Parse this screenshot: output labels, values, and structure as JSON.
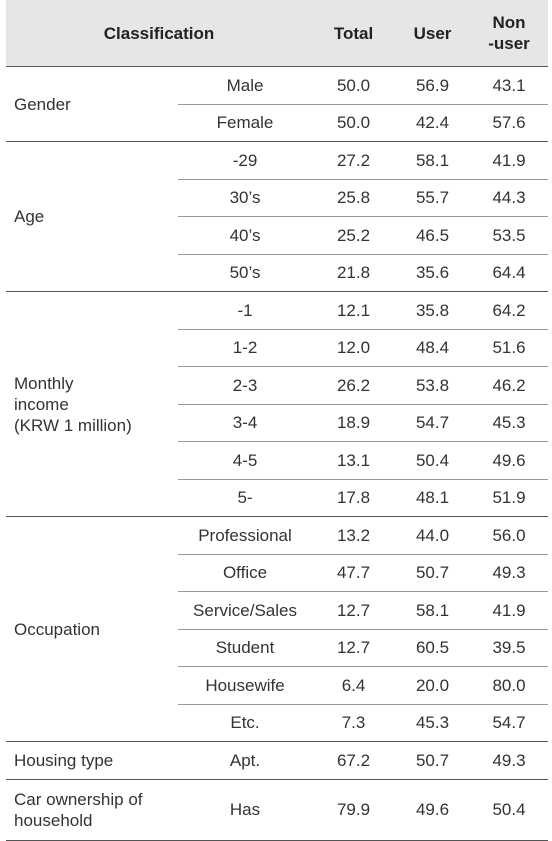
{
  "table": {
    "header": [
      "Classification",
      "Total",
      "User",
      "Non\n-user"
    ],
    "groups": [
      {
        "label": "Gender",
        "rows": [
          [
            "Male",
            "50.0",
            "56.9",
            "43.1"
          ],
          [
            "Female",
            "50.0",
            "42.4",
            "57.6"
          ]
        ]
      },
      {
        "label": "Age",
        "rows": [
          [
            "-29",
            "27.2",
            "58.1",
            "41.9"
          ],
          [
            "30’s",
            "25.8",
            "55.7",
            "44.3"
          ],
          [
            "40’s",
            "25.2",
            "46.5",
            "53.5"
          ],
          [
            "50’s",
            "21.8",
            "35.6",
            "64.4"
          ]
        ]
      },
      {
        "label": "Monthly\nincome\n(KRW 1 million)",
        "rows": [
          [
            "-1",
            "12.1",
            "35.8",
            "64.2"
          ],
          [
            "1-2",
            "12.0",
            "48.4",
            "51.6"
          ],
          [
            "2-3",
            "26.2",
            "53.8",
            "46.2"
          ],
          [
            "3-4",
            "18.9",
            "54.7",
            "45.3"
          ],
          [
            "4-5",
            "13.1",
            "50.4",
            "49.6"
          ],
          [
            "5-",
            "17.8",
            "48.1",
            "51.9"
          ]
        ]
      },
      {
        "label": "Occupation",
        "rows": [
          [
            "Professional",
            "13.2",
            "44.0",
            "56.0"
          ],
          [
            "Office",
            "47.7",
            "50.7",
            "49.3"
          ],
          [
            "Service/Sales",
            "12.7",
            "58.1",
            "41.9"
          ],
          [
            "Student",
            "12.7",
            "60.5",
            "39.5"
          ],
          [
            "Housewife",
            "6.4",
            "20.0",
            "80.0"
          ],
          [
            "Etc.",
            "7.3",
            "45.3",
            "54.7"
          ]
        ]
      },
      {
        "label": "Housing type",
        "rows": [
          [
            "Apt.",
            "67.2",
            "50.7",
            "49.3"
          ]
        ]
      },
      {
        "label": "Car ownership of\nhousehold",
        "rows": [
          [
            "Has",
            "79.9",
            "49.6",
            "50.4"
          ]
        ]
      }
    ]
  }
}
